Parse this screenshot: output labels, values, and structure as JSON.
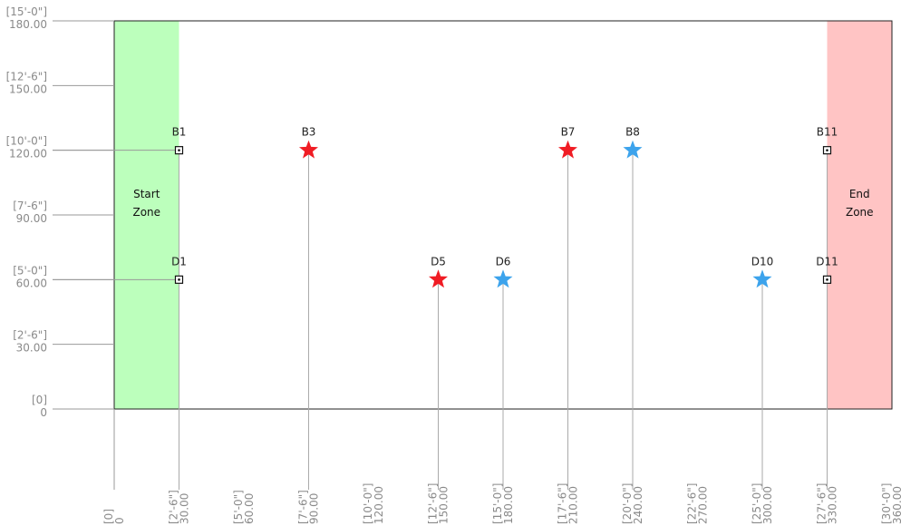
{
  "zones": {
    "start": "Start Zone",
    "end": "End Zone",
    "start_range": [
      0,
      30
    ],
    "end_range": [
      330,
      360
    ]
  },
  "xlim": [
    0,
    360
  ],
  "ylim": [
    0,
    180
  ],
  "yticks": [
    {
      "value": 0,
      "feet": "[0]",
      "label": "0"
    },
    {
      "value": 30,
      "feet": "[2'-6\"]",
      "label": "30.00"
    },
    {
      "value": 60,
      "feet": "[5'-0\"]",
      "label": "60.00"
    },
    {
      "value": 90,
      "feet": "[7'-6\"]",
      "label": "90.00"
    },
    {
      "value": 120,
      "feet": "[10'-0\"]",
      "label": "120.00"
    },
    {
      "value": 150,
      "feet": "[12'-6\"]",
      "label": "150.00"
    },
    {
      "value": 180,
      "feet": "[15'-0\"]",
      "label": "180.00"
    }
  ],
  "xticks": [
    {
      "value": 0,
      "feet": "[0]",
      "label": "0"
    },
    {
      "value": 30,
      "feet": "[2'-6\"]",
      "label": "30.00"
    },
    {
      "value": 60,
      "feet": "[5'-0\"]",
      "label": "60.00"
    },
    {
      "value": 90,
      "feet": "[7'-6\"]",
      "label": "90.00"
    },
    {
      "value": 120,
      "feet": "[10'-0\"]",
      "label": "120.00"
    },
    {
      "value": 150,
      "feet": "[12'-6\"]",
      "label": "150.00"
    },
    {
      "value": 180,
      "feet": "[15'-0\"]",
      "label": "180.00"
    },
    {
      "value": 210,
      "feet": "[17'-6\"]",
      "label": "210.00"
    },
    {
      "value": 240,
      "feet": "[20'-0\"]",
      "label": "240.00"
    },
    {
      "value": 270,
      "feet": "[22'-6\"]",
      "label": "270.00"
    },
    {
      "value": 300,
      "feet": "[25'-0\"]",
      "label": "300.00"
    },
    {
      "value": 330,
      "feet": "[27'-6\"]",
      "label": "330.00"
    },
    {
      "value": 360,
      "feet": "[30'-0\"]",
      "label": "360.00"
    }
  ],
  "points": [
    {
      "label": "B1",
      "x": 30,
      "y": 120,
      "marker": "box"
    },
    {
      "label": "B3",
      "x": 90,
      "y": 120,
      "marker": "star",
      "color": "#f01c24"
    },
    {
      "label": "B7",
      "x": 210,
      "y": 120,
      "marker": "star",
      "color": "#f01c24"
    },
    {
      "label": "B8",
      "x": 240,
      "y": 120,
      "marker": "star",
      "color": "#3ca3ec"
    },
    {
      "label": "B11",
      "x": 330,
      "y": 120,
      "marker": "box"
    },
    {
      "label": "D1",
      "x": 30,
      "y": 60,
      "marker": "box"
    },
    {
      "label": "D5",
      "x": 150,
      "y": 60,
      "marker": "star",
      "color": "#f01c24"
    },
    {
      "label": "D6",
      "x": 180,
      "y": 60,
      "marker": "star",
      "color": "#3ca3ec"
    },
    {
      "label": "D10",
      "x": 300,
      "y": 60,
      "marker": "star",
      "color": "#3ca3ec"
    },
    {
      "label": "D11",
      "x": 330,
      "y": 60,
      "marker": "box"
    }
  ]
}
